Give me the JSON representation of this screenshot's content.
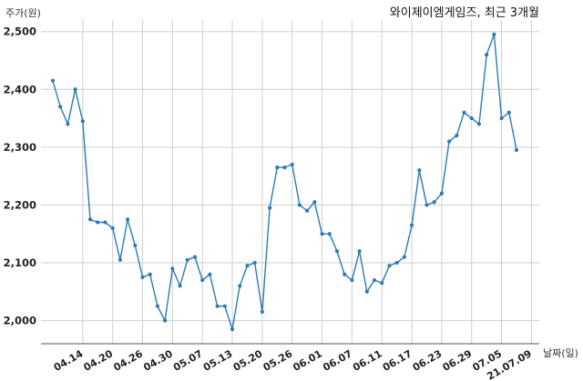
{
  "chart_data": {
    "type": "line",
    "title": "와이제이엠게임즈, 최근 3개월",
    "ylabel": "주가(원)",
    "xlabel": "날짜(일)",
    "ylim": [
      1960,
      2520
    ],
    "yticks": [
      2000,
      2100,
      2200,
      2300,
      2400,
      2500
    ],
    "ytick_labels": [
      "2,000",
      "2,100",
      "2,200",
      "2,300",
      "2,400",
      "2,500"
    ],
    "xtick_labels": [
      "04.14",
      "04.20",
      "04.26",
      "04.30",
      "05.07",
      "05.13",
      "05.20",
      "05.26",
      "06.01",
      "06.07",
      "06.11",
      "06.17",
      "06.23",
      "06.29",
      "07.05",
      "21.07.09"
    ],
    "xtick_index": [
      4,
      8,
      12,
      16,
      20,
      24,
      28,
      32,
      36,
      40,
      44,
      48,
      52,
      56,
      60,
      64
    ],
    "grid": true,
    "color": "#2b7bb4",
    "series": [
      {
        "values": [
          2415,
          2370,
          2340,
          2400,
          2345,
          2175,
          2170,
          2170,
          2160,
          2105,
          2175,
          2130,
          2075,
          2080,
          2025,
          2000,
          2090,
          2060,
          2105,
          2110,
          2070,
          2080,
          2025,
          2025,
          1985,
          2060,
          2095,
          2100,
          2015,
          2195,
          2265,
          2265,
          2270,
          2200,
          2190,
          2205,
          2150,
          2150,
          2120,
          2080,
          2070,
          2120,
          2050,
          2070,
          2065,
          2095,
          2100,
          2110,
          2165,
          2260,
          2200,
          2205,
          2220,
          2310,
          2320,
          2360,
          2350,
          2340,
          2460,
          2495,
          2350,
          2360,
          2295
        ]
      }
    ]
  }
}
